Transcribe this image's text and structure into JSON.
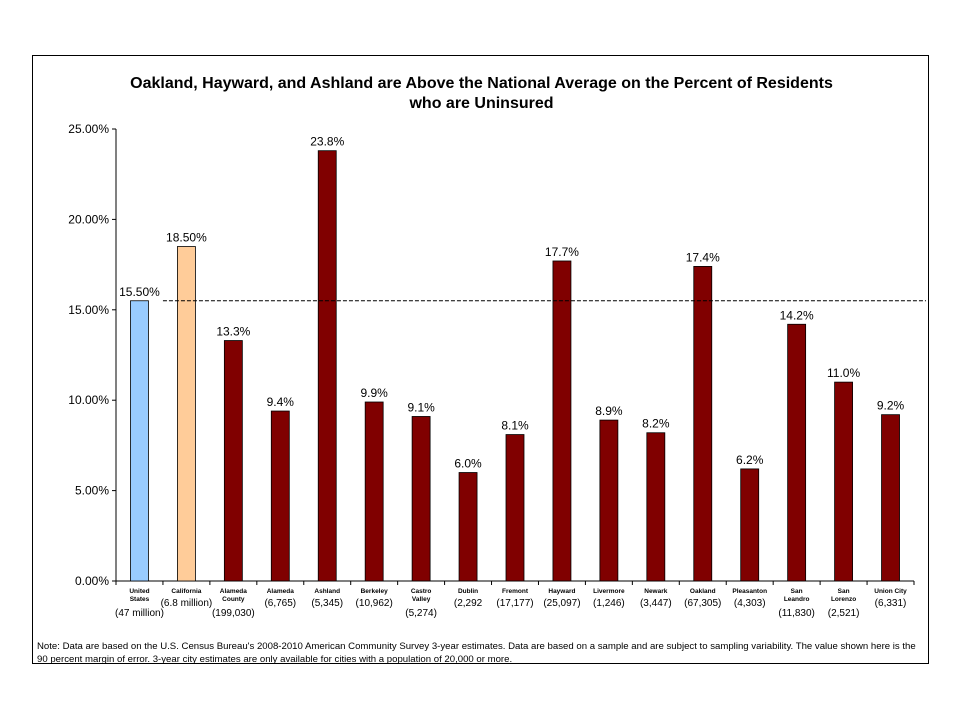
{
  "chart_data": {
    "type": "bar",
    "title_lines": [
      "Oakland, Hayward, and Ashland are Above the National Average on the Percent of Residents",
      "who are Uninsured"
    ],
    "xlabel": "",
    "ylabel": "",
    "ylim": [
      0,
      25
    ],
    "y_ticks": [
      "0.00%",
      "5.00%",
      "10.00%",
      "15.00%",
      "20.00%",
      "25.00%"
    ],
    "reference_line": {
      "value": 15.5,
      "style": "dashed"
    },
    "bar_colors": {
      "national": "#99ccff",
      "state": "#ffcc99",
      "local": "#800000"
    },
    "categories": [
      {
        "label": [
          "United",
          "States"
        ],
        "count": [
          "(47 million)"
        ],
        "value": 15.5,
        "data_label": "15.50%",
        "color": "national"
      },
      {
        "label": [
          "California"
        ],
        "count": [
          "(6.8 million)"
        ],
        "value": 18.5,
        "data_label": "18.50%",
        "color": "state"
      },
      {
        "label": [
          "Alameda",
          "County"
        ],
        "count": [
          "(199,030)"
        ],
        "value": 13.3,
        "data_label": "13.3%",
        "color": "local"
      },
      {
        "label": [
          "Alameda"
        ],
        "count": [
          "(6,765)"
        ],
        "value": 9.4,
        "data_label": "9.4%",
        "color": "local"
      },
      {
        "label": [
          "Ashland"
        ],
        "count": [
          "(5,345)"
        ],
        "value": 23.8,
        "data_label": "23.8%",
        "color": "local"
      },
      {
        "label": [
          "Berkeley"
        ],
        "count": [
          "(10,962)"
        ],
        "value": 9.9,
        "data_label": "9.9%",
        "color": "local"
      },
      {
        "label": [
          "Castro",
          "Valley"
        ],
        "count": [
          "(5,274)"
        ],
        "value": 9.1,
        "data_label": "9.1%",
        "color": "local"
      },
      {
        "label": [
          "Dublin"
        ],
        "count": [
          "(2,292"
        ],
        "value": 6.0,
        "data_label": "6.0%",
        "color": "local"
      },
      {
        "label": [
          "Fremont"
        ],
        "count": [
          "(17,177)"
        ],
        "value": 8.1,
        "data_label": "8.1%",
        "color": "local"
      },
      {
        "label": [
          "Hayward"
        ],
        "count": [
          "(25,097)"
        ],
        "value": 17.7,
        "data_label": "17.7%",
        "color": "local"
      },
      {
        "label": [
          "Livermore"
        ],
        "count": [
          "(1,246)"
        ],
        "value": 8.9,
        "data_label": "8.9%",
        "color": "local"
      },
      {
        "label": [
          "Newark"
        ],
        "count": [
          "(3,447)"
        ],
        "value": 8.2,
        "data_label": "8.2%",
        "color": "local"
      },
      {
        "label": [
          "Oakland"
        ],
        "count": [
          "(67,305)"
        ],
        "value": 17.4,
        "data_label": "17.4%",
        "color": "local"
      },
      {
        "label": [
          "Pleasanton"
        ],
        "count": [
          "(4,303)"
        ],
        "value": 6.2,
        "data_label": "6.2%",
        "color": "local"
      },
      {
        "label": [
          "San",
          "Leandro"
        ],
        "count": [
          "(11,830)"
        ],
        "value": 14.2,
        "data_label": "14.2%",
        "color": "local"
      },
      {
        "label": [
          "San",
          "Lorenzo"
        ],
        "count": [
          "(2,521)"
        ],
        "value": 11.0,
        "data_label": "11.0%",
        "color": "local"
      },
      {
        "label": [
          "Union City"
        ],
        "count": [
          "(6,331)"
        ],
        "value": 9.2,
        "data_label": "9.2%",
        "color": "local"
      }
    ],
    "grid": false,
    "legend": "none"
  },
  "note": "Note: Data are based on the U.S. Census Bureau's 2008-2010 American Community Survey 3-year estimates.  Data are based on a sample and are subject to sampling variability. The value shown here is the 90 percent margin of error.  3-year city estimates are only available for cities with a population of 20,000 or more."
}
